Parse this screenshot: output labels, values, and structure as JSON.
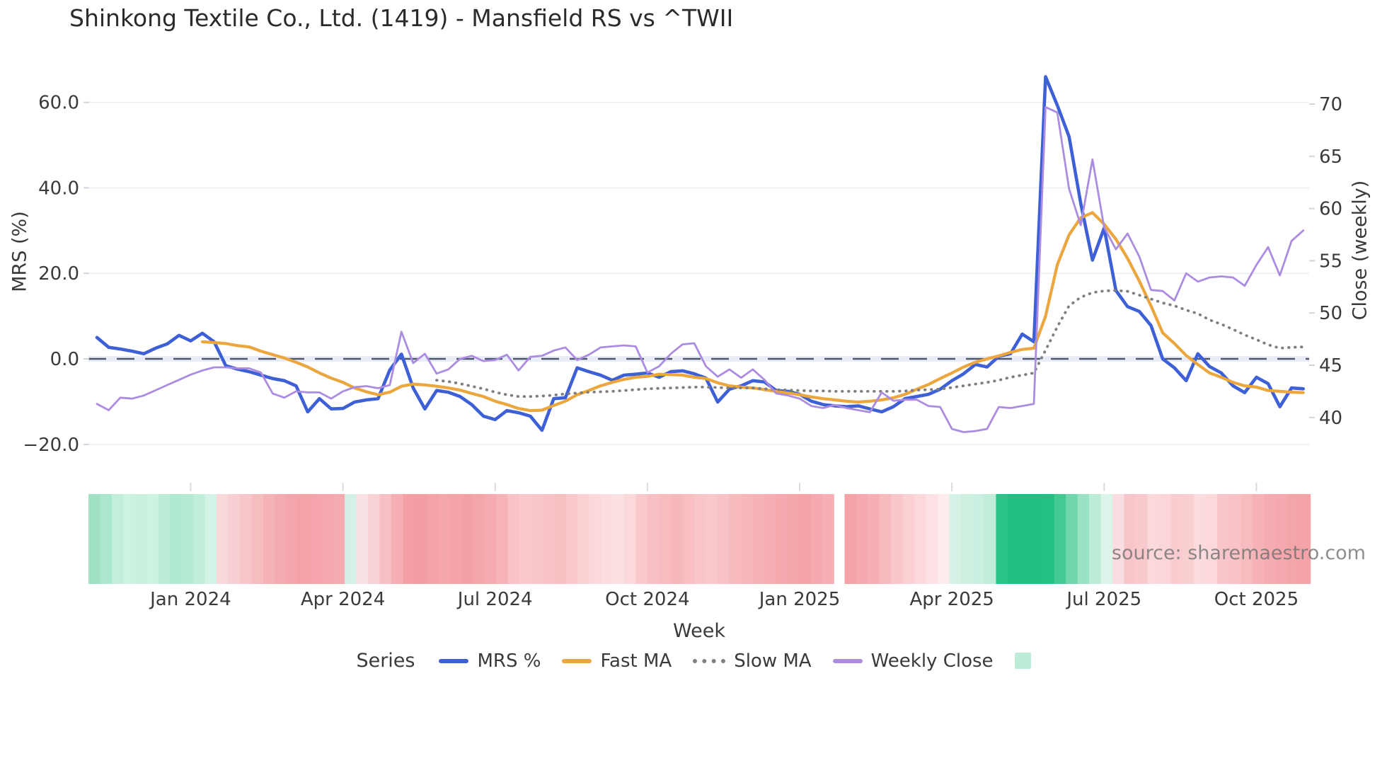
{
  "title": "Shinkong Textile Co., Ltd. (1419) - Mansfield RS vs ^TWII",
  "watermark": "source: sharemaestro.com",
  "axes": {
    "x_title": "Week",
    "y_left_title": "MRS (%)",
    "y_right_title": "Close (weekly)"
  },
  "legend": {
    "label": "Series",
    "items": [
      {
        "label": "MRS %",
        "style": "solid",
        "color": "#3e60d6"
      },
      {
        "label": "Fast MA",
        "style": "solid",
        "color": "#eba63d"
      },
      {
        "label": "Slow MA",
        "style": "dotted",
        "color": "#7f7f7f"
      },
      {
        "label": "Weekly Close",
        "style": "solid",
        "color": "#ab8ce0"
      },
      {
        "label": "",
        "style": "square",
        "color": "#bdecd8"
      }
    ]
  },
  "chart_data": {
    "type": "line",
    "x_unit": "week",
    "x_ticks": [
      {
        "week": 8,
        "label": "Jan 2024"
      },
      {
        "week": 21,
        "label": "Apr 2024"
      },
      {
        "week": 34,
        "label": "Jul 2024"
      },
      {
        "week": 47,
        "label": "Oct 2024"
      },
      {
        "week": 60,
        "label": "Jan 2025"
      },
      {
        "week": 73,
        "label": "Apr 2025"
      },
      {
        "week": 86,
        "label": "Jul 2025"
      },
      {
        "week": 99,
        "label": "Oct 2025"
      }
    ],
    "y_left": {
      "title": "MRS (%)",
      "tick_values": [
        60,
        40,
        20,
        0,
        -20
      ],
      "tick_labels": [
        "60.0",
        "40.0",
        "20.0",
        "0.0",
        "−20.0"
      ],
      "range": [
        -25,
        70
      ]
    },
    "y_right": {
      "title": "Close (weekly)",
      "tick_values": [
        70,
        65,
        60,
        55,
        50,
        45,
        40
      ],
      "tick_labels": [
        "70",
        "65",
        "60",
        "55",
        "50",
        "45",
        "40"
      ],
      "range": [
        38,
        72.5
      ]
    },
    "zero_line": true,
    "grid": true,
    "legend_position": "bottom",
    "series": [
      {
        "name": "MRS %",
        "axis": "left",
        "color": "#3e60d6",
        "style": "solid",
        "width": 4.6,
        "values": [
          5.0,
          2.7,
          2.3,
          1.8,
          1.2,
          2.5,
          3.5,
          5.5,
          4.2,
          6.0,
          4.0,
          -1.6,
          -2.4,
          -3.0,
          -3.8,
          -4.6,
          -5.1,
          -6.3,
          -12.4,
          -9.3,
          -11.7,
          -11.6,
          -10.1,
          -9.6,
          -9.3,
          -2.6,
          1.1,
          -6.8,
          -11.7,
          -7.4,
          -7.8,
          -8.8,
          -10.7,
          -13.4,
          -14.2,
          -12.1,
          -12.6,
          -13.4,
          -16.7,
          -9.3,
          -9.1,
          -2.1,
          -3.0,
          -3.8,
          -5.0,
          -3.8,
          -3.6,
          -3.3,
          -4.3,
          -3.0,
          -2.8,
          -3.5,
          -4.5,
          -10.1,
          -7.1,
          -6.3,
          -5.1,
          -5.4,
          -7.4,
          -7.6,
          -8.3,
          -9.9,
          -10.7,
          -11.0,
          -11.2,
          -11.0,
          -11.7,
          -12.4,
          -11.2,
          -9.3,
          -8.8,
          -8.3,
          -7.1,
          -5.1,
          -3.5,
          -1.3,
          -1.9,
          0.6,
          1.2,
          5.8,
          4.0,
          66.0,
          59.3,
          52.0,
          36.4,
          23.1,
          30.6,
          16.0,
          12.2,
          11.1,
          7.8,
          0.0,
          -2.1,
          -5.1,
          1.2,
          -1.8,
          -3.3,
          -6.3,
          -7.9,
          -4.3,
          -5.8,
          -11.2,
          -6.8,
          -7.0
        ]
      },
      {
        "name": "Fast MA",
        "axis": "left",
        "color": "#eba63d",
        "style": "solid",
        "width": 4.2,
        "values": [
          null,
          null,
          null,
          null,
          null,
          null,
          null,
          null,
          null,
          4.0,
          3.8,
          3.6,
          3.1,
          2.8,
          1.8,
          1.0,
          0.2,
          -0.8,
          -1.9,
          -3.3,
          -4.5,
          -5.5,
          -6.8,
          -7.7,
          -8.4,
          -7.8,
          -6.4,
          -5.9,
          -6.1,
          -6.4,
          -6.8,
          -7.3,
          -8.1,
          -8.8,
          -9.9,
          -10.7,
          -11.6,
          -12.1,
          -12.0,
          -10.9,
          -9.9,
          -8.4,
          -7.4,
          -6.3,
          -5.5,
          -4.8,
          -4.3,
          -4.1,
          -3.6,
          -3.7,
          -3.8,
          -4.3,
          -4.6,
          -5.6,
          -6.3,
          -6.6,
          -6.8,
          -7.2,
          -7.6,
          -8.0,
          -8.4,
          -8.9,
          -9.3,
          -9.6,
          -9.9,
          -10.1,
          -9.9,
          -9.6,
          -9.1,
          -8.3,
          -7.1,
          -6.0,
          -4.6,
          -3.3,
          -1.9,
          -0.8,
          0.0,
          0.7,
          1.5,
          2.2,
          2.5,
          10.0,
          22.0,
          29.0,
          33.0,
          34.2,
          31.5,
          28.0,
          23.5,
          18.2,
          12.4,
          6.1,
          3.6,
          0.8,
          -1.3,
          -3.3,
          -4.3,
          -5.5,
          -6.3,
          -6.6,
          -7.4,
          -7.6,
          -7.8,
          -7.9
        ]
      },
      {
        "name": "Slow MA",
        "axis": "left",
        "color": "#7f7f7f",
        "style": "dotted",
        "width": 3.8,
        "values": [
          null,
          null,
          null,
          null,
          null,
          null,
          null,
          null,
          null,
          null,
          null,
          null,
          null,
          null,
          null,
          null,
          null,
          null,
          null,
          null,
          null,
          null,
          null,
          null,
          null,
          null,
          null,
          null,
          null,
          -5.0,
          -5.3,
          -5.8,
          -6.4,
          -7.0,
          -7.8,
          -8.4,
          -8.8,
          -8.8,
          -8.7,
          -8.5,
          -8.2,
          -8.0,
          -7.8,
          -7.7,
          -7.6,
          -7.4,
          -7.2,
          -7.0,
          -6.9,
          -6.8,
          -6.7,
          -6.6,
          -6.6,
          -6.7,
          -6.8,
          -6.8,
          -6.8,
          -7.0,
          -7.2,
          -7.3,
          -7.4,
          -7.5,
          -7.5,
          -7.6,
          -7.6,
          -7.6,
          -7.6,
          -7.6,
          -7.6,
          -7.5,
          -7.3,
          -7.2,
          -7.1,
          -6.7,
          -6.3,
          -5.9,
          -5.5,
          -5.0,
          -4.3,
          -3.8,
          -3.3,
          2.0,
          7.5,
          12.4,
          14.4,
          15.5,
          15.9,
          16.0,
          15.8,
          14.9,
          14.0,
          13.1,
          12.4,
          11.4,
          10.6,
          9.1,
          8.1,
          6.9,
          5.6,
          4.5,
          3.3,
          2.5,
          2.7,
          2.8
        ]
      },
      {
        "name": "Weekly Close",
        "axis": "right",
        "color": "#ab8ce0",
        "style": "solid",
        "width": 2.8,
        "values": [
          41.3,
          40.7,
          41.9,
          41.8,
          42.1,
          42.6,
          43.1,
          43.6,
          44.1,
          44.5,
          44.8,
          44.8,
          44.7,
          44.7,
          44.3,
          42.3,
          41.9,
          42.5,
          42.4,
          42.4,
          41.8,
          42.5,
          42.9,
          43.0,
          42.8,
          43.1,
          48.2,
          45.2,
          46.1,
          44.2,
          44.6,
          45.6,
          45.9,
          45.4,
          45.5,
          46.0,
          44.5,
          45.8,
          45.9,
          46.4,
          46.7,
          45.5,
          46.0,
          46.7,
          46.8,
          46.9,
          46.8,
          44.3,
          44.9,
          46.1,
          47.0,
          47.1,
          44.9,
          43.9,
          44.6,
          43.8,
          44.6,
          43.6,
          42.3,
          42.1,
          41.8,
          41.1,
          40.9,
          41.2,
          40.9,
          40.7,
          40.5,
          42.4,
          41.6,
          41.7,
          41.7,
          41.1,
          41.0,
          38.9,
          38.6,
          38.7,
          38.9,
          41.0,
          40.9,
          41.1,
          41.3,
          69.7,
          69.2,
          61.9,
          58.4,
          64.7,
          58.2,
          56.1,
          57.6,
          55.4,
          52.2,
          52.1,
          51.2,
          53.8,
          53.0,
          53.4,
          53.5,
          53.4,
          52.6,
          54.6,
          56.3,
          53.6,
          56.9,
          57.9
        ]
      }
    ],
    "heatmap": {
      "description": "weekly relative-strength heat strip (green = strong, red = weak)",
      "gap_after_index": 63,
      "colors": [
        "#9fe2c4",
        "#abe7cd",
        "#c2eedb",
        "#cdf2e2",
        "#c7f0de",
        "#cdf2e2",
        "#bdecd7",
        "#b0e8d0",
        "#b5ead3",
        "#c0eed9",
        "#d2f3e5",
        "#f9d8da",
        "#f8cfd2",
        "#f7c6ca",
        "#f6bdc1",
        "#f5b3b8",
        "#f4abb0",
        "#f4a5ab",
        "#f3a2a8",
        "#f4a4aa",
        "#f4a7ac",
        "#f5aab0",
        "#d5f1e5",
        "#fae2e4",
        "#f9d2d5",
        "#f6c0c4",
        "#f5aeb3",
        "#f49fa6",
        "#f39da4",
        "#f4a2a8",
        "#f4a6ab",
        "#f4a3a9",
        "#f3a0a6",
        "#f4a5aa",
        "#f5abb0",
        "#f6b4b9",
        "#f8c2c6",
        "#f9c9cc",
        "#f9c6c9",
        "#f8c3c7",
        "#f8bfc3",
        "#f9c8cb",
        "#fad2d4",
        "#fbd8da",
        "#fcdee0",
        "#fce1e3",
        "#fbd9db",
        "#f9c8cb",
        "#f8c0c4",
        "#f8bcc0",
        "#f7b8bc",
        "#f8bec2",
        "#f9c5c8",
        "#f9c8cb",
        "#f8c2c6",
        "#f7babe",
        "#f7b6bb",
        "#f6b1b6",
        "#f6aeb3",
        "#f5a9ae",
        "#f5a6ab",
        "#f4a2a8",
        "#f5a8ad",
        "#f6b0b5",
        "#f4a1a7",
        "#f5a8ad",
        "#f6b0b5",
        "#f7babe",
        "#f9c6c9",
        "#fad0d3",
        "#fbd8da",
        "#fce2e4",
        "#fdecec",
        "#d5f2e6",
        "#cdf0e1",
        "#c8efdf",
        "#c0edda",
        "#29c287",
        "#20bf82",
        "#1fbf81",
        "#1fbf81",
        "#22c083",
        "#44c993",
        "#6fd5aa",
        "#9ae2c3",
        "#bdecd6",
        "#dcf5ea",
        "#fadde0",
        "#f8c6ca",
        "#f8cacd",
        "#fbd8da",
        "#fbd5d7",
        "#f9cdd0",
        "#facfd2",
        "#fbdbdd",
        "#fbd8da",
        "#f8c6ca",
        "#f8c2c6",
        "#f7bcc0",
        "#f6b2b7",
        "#f5acb1",
        "#f5a8ad",
        "#f4a5aa",
        "#f4a3a9"
      ]
    }
  }
}
